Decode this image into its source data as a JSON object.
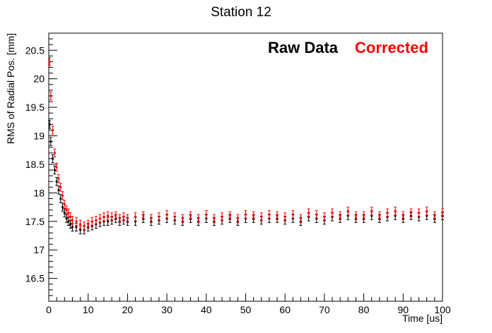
{
  "chart_data": {
    "type": "scatter",
    "title": "Station 12",
    "xlabel": "Time [us]",
    "ylabel": "RMS of Radial Pos. [mm]",
    "xlim": [
      0,
      100
    ],
    "ylim": [
      16.1,
      20.8
    ],
    "x_ticks": [
      "0",
      "10",
      "20",
      "30",
      "40",
      "50",
      "60",
      "70",
      "80",
      "90",
      "100"
    ],
    "y_ticks": [
      "16.5",
      "17",
      "17.5",
      "18",
      "18.5",
      "19",
      "19.5",
      "20",
      "20.5"
    ],
    "legend_placement": "top-right",
    "grid": false,
    "series": [
      {
        "name": "Raw Data",
        "color": "#000000",
        "x": [
          0.2,
          0.5,
          1,
          1.5,
          2,
          2.5,
          3,
          3.5,
          4,
          4.5,
          5,
          5.5,
          6,
          7,
          8,
          9,
          10,
          11,
          12,
          13,
          14,
          15,
          16,
          17,
          18,
          19,
          20,
          22,
          24,
          26,
          28,
          30,
          32,
          34,
          36,
          38,
          40,
          42,
          44,
          46,
          48,
          50,
          52,
          54,
          56,
          58,
          60,
          62,
          64,
          66,
          68,
          70,
          72,
          74,
          76,
          78,
          80,
          82,
          84,
          86,
          88,
          90,
          92,
          94,
          96,
          98,
          100
        ],
        "y": [
          19.2,
          18.9,
          18.6,
          18.4,
          18.2,
          18.05,
          17.9,
          17.75,
          17.65,
          17.55,
          17.5,
          17.45,
          17.4,
          17.4,
          17.35,
          17.35,
          17.4,
          17.42,
          17.45,
          17.48,
          17.5,
          17.5,
          17.52,
          17.55,
          17.5,
          17.52,
          17.5,
          17.5,
          17.55,
          17.5,
          17.52,
          17.55,
          17.52,
          17.5,
          17.55,
          17.5,
          17.55,
          17.5,
          17.52,
          17.55,
          17.5,
          17.55,
          17.55,
          17.52,
          17.55,
          17.55,
          17.52,
          17.55,
          17.5,
          17.58,
          17.55,
          17.52,
          17.58,
          17.55,
          17.6,
          17.55,
          17.55,
          17.6,
          17.55,
          17.58,
          17.6,
          17.55,
          17.6,
          17.58,
          17.6,
          17.55,
          17.6
        ]
      },
      {
        "name": "Corrected",
        "color": "#ff0000",
        "x": [
          0.2,
          0.5,
          1,
          1.5,
          2,
          2.5,
          3,
          3.5,
          4,
          4.5,
          5,
          5.5,
          6,
          7,
          8,
          9,
          10,
          11,
          12,
          13,
          14,
          15,
          16,
          17,
          18,
          19,
          20,
          22,
          24,
          26,
          28,
          30,
          32,
          34,
          36,
          38,
          40,
          42,
          44,
          46,
          48,
          50,
          52,
          54,
          56,
          58,
          60,
          62,
          64,
          66,
          68,
          70,
          72,
          74,
          76,
          78,
          80,
          82,
          84,
          86,
          88,
          90,
          92,
          94,
          96,
          98,
          100
        ],
        "y": [
          20.3,
          19.7,
          19.1,
          18.7,
          18.45,
          18.25,
          18.1,
          17.95,
          17.8,
          17.7,
          17.65,
          17.58,
          17.52,
          17.5,
          17.45,
          17.42,
          17.45,
          17.5,
          17.52,
          17.55,
          17.58,
          17.6,
          17.58,
          17.6,
          17.55,
          17.58,
          17.55,
          17.58,
          17.6,
          17.55,
          17.58,
          17.62,
          17.58,
          17.55,
          17.6,
          17.55,
          17.62,
          17.55,
          17.58,
          17.6,
          17.55,
          17.62,
          17.6,
          17.58,
          17.62,
          17.6,
          17.58,
          17.62,
          17.55,
          17.65,
          17.62,
          17.58,
          17.65,
          17.6,
          17.68,
          17.6,
          17.6,
          17.68,
          17.6,
          17.65,
          17.68,
          17.6,
          17.65,
          17.65,
          17.68,
          17.6,
          17.65
        ]
      }
    ]
  }
}
